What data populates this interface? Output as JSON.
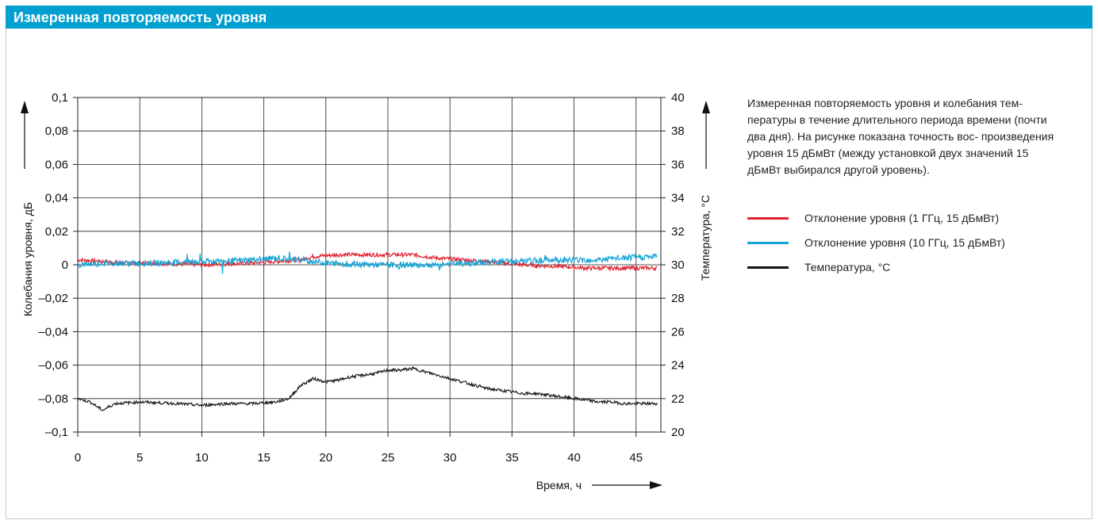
{
  "header": {
    "title": "Измеренная повторяемость уровня"
  },
  "caption": "Измеренная повторяемость уровня и колебания тем- пературы в течение длительного периода времени (почти два дня). На рисунке показана точность вос- произведения уровня 15 дБмВт (между установкой двух значений 15 дБмВт выбирался другой уровень).",
  "legend": [
    {
      "label": "Отклонение уровня (1 ГГц, 15 дБмВт)",
      "color": "#e0202f"
    },
    {
      "label": "Отклонение уровня (10 ГГц, 15 дБмВт)",
      "color": "#14a3d6"
    },
    {
      "label": "Температура, °C",
      "color": "#111111"
    }
  ],
  "chart_data": {
    "type": "line",
    "xlabel": "Время, ч",
    "ylabel": "Колебания уровня, дБ",
    "y2label": "Температура, °C",
    "xlim": [
      0,
      47
    ],
    "ylim": [
      -0.1,
      0.1
    ],
    "y2lim": [
      20,
      40
    ],
    "x_ticks": [
      "0",
      "5",
      "10",
      "15",
      "20",
      "25",
      "30",
      "35",
      "40",
      "45"
    ],
    "y_ticks": [
      "0,1",
      "0,08",
      "0,06",
      "0,04",
      "0,02",
      "0",
      "–0,02",
      "–0,04",
      "–0,06",
      "–0,08",
      "–0,1"
    ],
    "y2_ticks": [
      "40",
      "38",
      "36",
      "34",
      "32",
      "30",
      "28",
      "26",
      "24",
      "22",
      "20"
    ],
    "grid": true,
    "series": [
      {
        "name": "Отклонение уровня (1 ГГц, 15 дБмВт)",
        "axis": "left",
        "color": "#e0202f",
        "x": [
          0,
          2,
          4,
          6,
          8,
          10,
          12,
          14,
          16,
          18,
          19,
          21,
          23,
          25,
          27,
          29,
          31,
          33,
          35,
          37,
          39,
          41,
          43,
          45,
          46.7
        ],
        "y": [
          0.003,
          0.002,
          0.001,
          0.001,
          0.0005,
          0,
          0.0005,
          0.001,
          0.002,
          0.003,
          0.005,
          0.006,
          0.006,
          0.006,
          0.006,
          0.004,
          0.003,
          0.002,
          0.0005,
          -0.0005,
          -0.001,
          -0.002,
          -0.002,
          -0.002,
          -0.002
        ]
      },
      {
        "name": "Отклонение уровня (10 ГГц, 15 дБмВт)",
        "axis": "left",
        "color": "#14a3d6",
        "x": [
          0,
          2,
          4,
          6,
          8,
          10,
          12,
          14,
          16,
          18,
          20,
          22,
          24,
          26,
          28,
          30,
          32,
          34,
          36,
          38,
          40,
          42,
          44,
          46.7
        ],
        "y": [
          0,
          0.001,
          0.001,
          0.001,
          0.0015,
          0.002,
          0.002,
          0.003,
          0.004,
          0.003,
          0.001,
          0.0005,
          0,
          0,
          0,
          0.0005,
          0.001,
          0.002,
          0.002,
          0.003,
          0.003,
          0.003,
          0.004,
          0.005
        ]
      },
      {
        "name": "Температура, °C",
        "axis": "right",
        "color": "#111111",
        "x": [
          0,
          1,
          2,
          3,
          5,
          8,
          10,
          12,
          14,
          16,
          17,
          18,
          19,
          20,
          21,
          22,
          23,
          24,
          25,
          26,
          27,
          28,
          29,
          30,
          31,
          32,
          33,
          34,
          35,
          36,
          37,
          38,
          39,
          40,
          41,
          42,
          43,
          44,
          45,
          46.7
        ],
        "y": [
          22.0,
          21.8,
          21.3,
          21.7,
          21.8,
          21.7,
          21.6,
          21.7,
          21.7,
          21.8,
          22.0,
          22.8,
          23.2,
          23.0,
          23.1,
          23.3,
          23.4,
          23.5,
          23.7,
          23.7,
          23.8,
          23.6,
          23.4,
          23.2,
          23.0,
          22.8,
          22.6,
          22.5,
          22.4,
          22.3,
          22.3,
          22.2,
          22.1,
          22.0,
          21.9,
          21.8,
          21.8,
          21.7,
          21.7,
          21.7
        ]
      }
    ]
  }
}
